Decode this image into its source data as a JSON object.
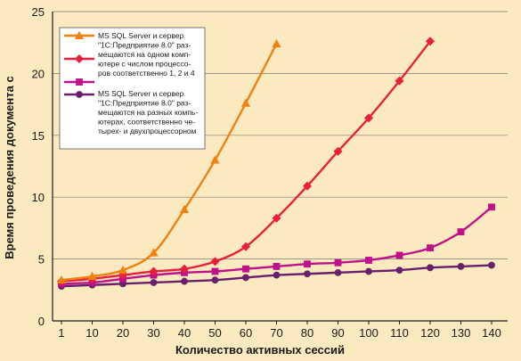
{
  "chart_data": {
    "type": "line",
    "x": [
      1,
      10,
      20,
      30,
      40,
      50,
      60,
      70,
      80,
      90,
      100,
      110,
      120,
      130,
      140
    ],
    "xlabel": "Количество активных сессий",
    "ylabel": "Время проведения документа с",
    "ylim": [
      0,
      25
    ],
    "yticks": [
      0,
      5,
      10,
      15,
      20,
      25
    ],
    "grid": "horizontal",
    "legend": "top-left",
    "series": [
      {
        "name": "MS SQL Server и сервер \"1С:Предприятие 8.0\" размещаются на одном компьютере с числом процессоров соответственно 1, 2 и 4",
        "color": "#f08010",
        "marker": "triangle",
        "values": [
          3.3,
          3.6,
          4.1,
          5.5,
          9.0,
          13.0,
          17.6,
          22.4,
          null,
          null,
          null,
          null,
          null,
          null,
          null
        ]
      },
      {
        "name": "",
        "color": "#e8203c",
        "marker": "diamond",
        "values": [
          3.2,
          3.4,
          3.7,
          4.0,
          4.2,
          4.8,
          6.0,
          8.3,
          10.9,
          13.7,
          16.4,
          19.4,
          22.6,
          null,
          null
        ]
      },
      {
        "name": "",
        "color": "#c0108a",
        "marker": "square",
        "values": [
          3.0,
          3.1,
          3.4,
          3.7,
          3.9,
          4.0,
          4.2,
          4.4,
          4.6,
          4.7,
          4.9,
          5.3,
          5.9,
          7.2,
          9.2
        ]
      },
      {
        "name": "MS SQL Server и сервер \"1С:Предприятие 8.0\" размещаются на разных компьютерах, соответственно четырех- и двухпроцессорном",
        "color": "#6a1f6c",
        "marker": "circle",
        "values": [
          2.8,
          2.9,
          3.0,
          3.1,
          3.2,
          3.3,
          3.5,
          3.7,
          3.8,
          3.9,
          4.0,
          4.1,
          4.3,
          4.4,
          4.5
        ]
      }
    ],
    "legend_lines": [
      [
        "MS SQL Server и сервер",
        "\"1С:Предприятие 8.0\" раз-",
        "мещаются на одном комп-",
        "ютере с числом процессо-",
        "ров соответственно 1, 2 и 4"
      ],
      [
        "MS SQL Server и сервер",
        "\"1С:Предприятие 8.0\" раз-",
        "мещаются на разных компь-",
        "ютерах, соответственно че-",
        "тырех- и двухпроцессорном"
      ]
    ]
  }
}
